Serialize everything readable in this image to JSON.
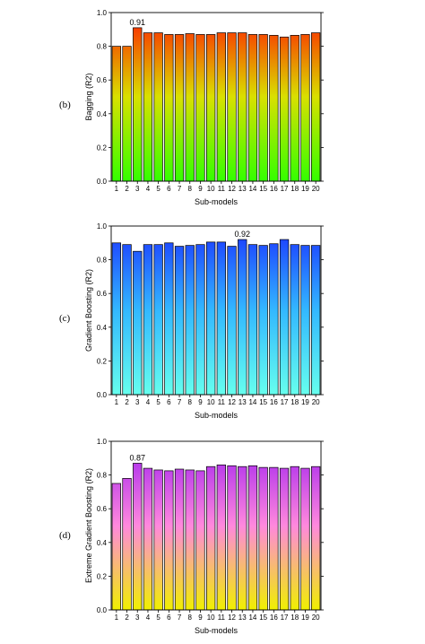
{
  "chart_data": [
    {
      "type": "bar",
      "panel_label": "(b)",
      "categories": [
        "1",
        "2",
        "3",
        "4",
        "5",
        "6",
        "7",
        "8",
        "9",
        "10",
        "11",
        "12",
        "13",
        "14",
        "15",
        "16",
        "17",
        "18",
        "19",
        "20"
      ],
      "values": [
        0.8,
        0.8,
        0.91,
        0.88,
        0.88,
        0.87,
        0.87,
        0.875,
        0.87,
        0.87,
        0.88,
        0.88,
        0.88,
        0.87,
        0.87,
        0.865,
        0.855,
        0.865,
        0.87,
        0.88
      ],
      "annotation": {
        "label": "0.91",
        "index": 2
      },
      "xlabel": "Sub-models",
      "ylabel": "Bagging (R2)",
      "ylim": [
        0,
        1.0
      ],
      "yticks": [
        "0.0",
        "0.2",
        "0.4",
        "0.6",
        "0.8",
        "1.0"
      ],
      "gradient": {
        "top": "#ff1a00",
        "middle": "#d9e000",
        "bottom": "#33ff00"
      }
    },
    {
      "type": "bar",
      "panel_label": "(c)",
      "categories": [
        "1",
        "2",
        "3",
        "4",
        "5",
        "6",
        "7",
        "8",
        "9",
        "10",
        "11",
        "12",
        "13",
        "14",
        "15",
        "16",
        "17",
        "18",
        "19",
        "20"
      ],
      "values": [
        0.9,
        0.89,
        0.85,
        0.89,
        0.89,
        0.9,
        0.88,
        0.885,
        0.89,
        0.905,
        0.905,
        0.88,
        0.92,
        0.89,
        0.885,
        0.895,
        0.92,
        0.89,
        0.885,
        0.885
      ],
      "annotation": {
        "label": "0.92",
        "index": 12
      },
      "xlabel": "Sub-models",
      "ylabel": "Gradient Boosting (R2)",
      "ylim": [
        0,
        1.0
      ],
      "yticks": [
        "0.0",
        "0.2",
        "0.4",
        "0.6",
        "0.8",
        "1.0"
      ],
      "gradient": {
        "top": "#1a33ff",
        "middle": "#33b8ff",
        "bottom": "#66ffee"
      }
    },
    {
      "type": "bar",
      "panel_label": "(d)",
      "categories": [
        "1",
        "2",
        "3",
        "4",
        "5",
        "6",
        "7",
        "8",
        "9",
        "10",
        "11",
        "12",
        "13",
        "14",
        "15",
        "16",
        "17",
        "18",
        "19",
        "20"
      ],
      "values": [
        0.75,
        0.78,
        0.87,
        0.84,
        0.83,
        0.825,
        0.835,
        0.83,
        0.825,
        0.85,
        0.86,
        0.855,
        0.85,
        0.855,
        0.845,
        0.845,
        0.84,
        0.85,
        0.84,
        0.85
      ],
      "annotation": {
        "label": "0.87",
        "index": 2
      },
      "xlabel": "Sub-models",
      "ylabel": "Extreme Gradient Boosting (R2)",
      "ylim": [
        0,
        1.0
      ],
      "yticks": [
        "0.0",
        "0.2",
        "0.4",
        "0.6",
        "0.8",
        "1.0"
      ],
      "gradient": {
        "top": "#a020f0",
        "middle": "#ff88dd",
        "bottom": "#f0f000"
      }
    }
  ]
}
